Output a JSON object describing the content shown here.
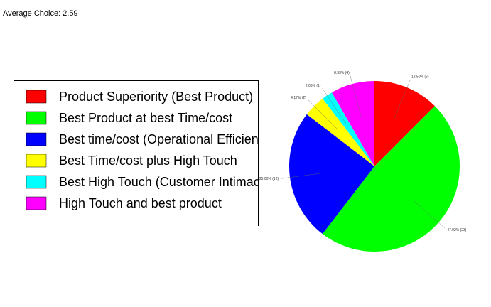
{
  "header": {
    "text": "Average Choice: 2,59"
  },
  "chart_data": {
    "type": "pie",
    "categories": [
      "Product Superiority (Best Product)",
      "Best Product at best Time/cost",
      "Best time/cost (Operational Efficienc",
      "Best Time/cost plus High Touch",
      "Best High Touch (Customer Intimac",
      "High Touch and best product"
    ],
    "values": [
      12.5,
      47.92,
      25.0,
      4.17,
      2.08,
      8.33
    ],
    "value_labels": [
      "12.50% (6)",
      "47.92% (23)",
      "25.00% (12)",
      "4.17% (2)",
      "2.08% (1)",
      "8.33% (4)"
    ],
    "colors": [
      "#ff0000",
      "#00ff00",
      "#0000ff",
      "#ffff00",
      "#00ffff",
      "#ff00ff"
    ]
  }
}
